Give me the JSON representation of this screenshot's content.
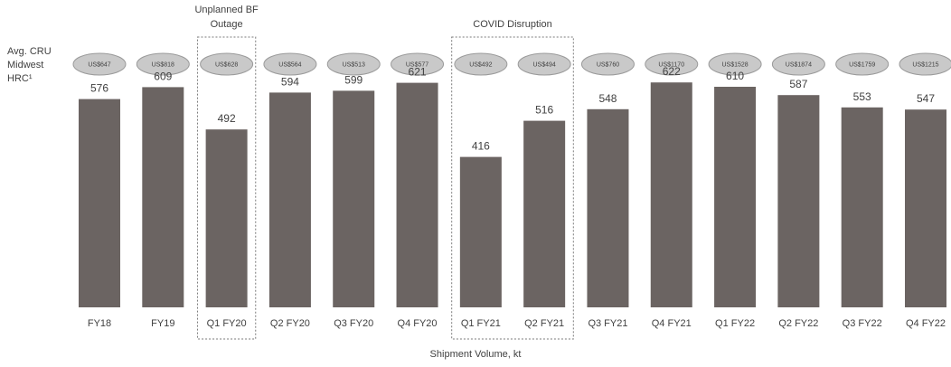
{
  "price_label": [
    "Avg. CRU",
    "Midwest",
    "HRC¹"
  ],
  "chart_data": {
    "type": "bar",
    "title": "",
    "xlabel": "Shipment Volume, kt",
    "ylabel": "",
    "ylim": [
      0,
      650
    ],
    "grid": false,
    "legend": "none",
    "categories": [
      "FY18",
      "FY19",
      "Q1 FY20",
      "Q2 FY20",
      "Q3 FY20",
      "Q4 FY20",
      "Q1 FY21",
      "Q2 FY21",
      "Q3 FY21",
      "Q4 FY21",
      "Q1 FY22",
      "Q2 FY22",
      "Q3 FY22",
      "Q4 FY22"
    ],
    "values": [
      576,
      609,
      492,
      594,
      599,
      621,
      416,
      516,
      548,
      622,
      610,
      587,
      553,
      547
    ],
    "prices": [
      "US$647",
      "US$818",
      "US$628",
      "US$564",
      "US$513",
      "US$577",
      "US$492",
      "US$494",
      "US$760",
      "US$1170",
      "US$1528",
      "US$1874",
      "US$1759",
      "US$1215"
    ],
    "annotations": [
      {
        "text": "Unplanned BF Outage",
        "categories": [
          "Q1 FY20"
        ]
      },
      {
        "text": "COVID Disruption",
        "categories": [
          "Q1 FY21",
          "Q2 FY21"
        ]
      }
    ],
    "bar_color": "#6b6462",
    "price_fill": "#c9c9c9"
  }
}
